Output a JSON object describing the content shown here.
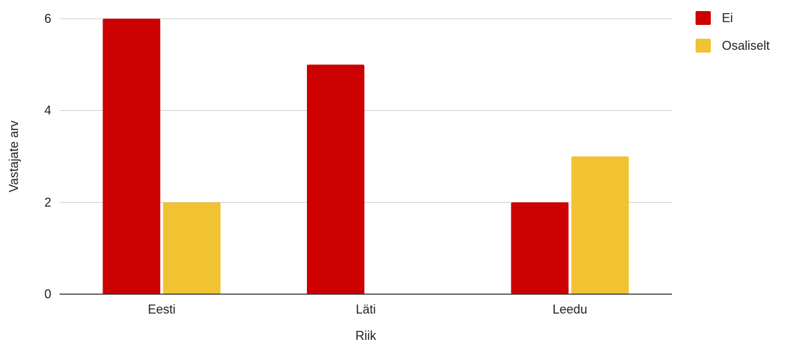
{
  "chart_data": {
    "type": "bar",
    "categories": [
      "Eesti",
      "Läti",
      "Leedu"
    ],
    "series": [
      {
        "name": "Ei",
        "color": "#cc0000",
        "values": [
          6,
          5,
          2
        ]
      },
      {
        "name": "Osaliselt",
        "color": "#f1c232",
        "values": [
          2,
          0,
          3
        ]
      }
    ],
    "xlabel": "Riik",
    "ylabel": "Vastajate arv",
    "ylim": [
      0,
      6
    ],
    "yticks": [
      0,
      2,
      4,
      6
    ],
    "grid": true,
    "legend_position": "top-right"
  }
}
